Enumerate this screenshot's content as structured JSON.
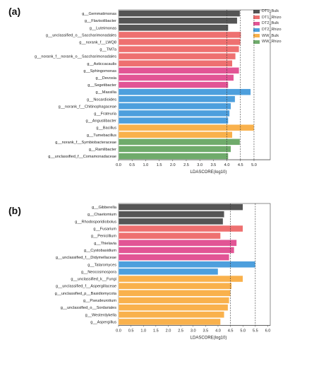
{
  "colors": {
    "DT1_Bulk": "#555555",
    "DT1_Rhizo": "#ee7070",
    "DT2_Bulk": "#e25595",
    "DT2_Rhizo": "#4d9fdd",
    "WW_Bulk": "#f9b14c",
    "WW_Rhizo": "#6fab6b"
  },
  "legend": [
    {
      "key": "DT1_Bulk",
      "label": "DT1_Bulk"
    },
    {
      "key": "DT1_Rhizo",
      "label": "DT1_Rhizo"
    },
    {
      "key": "DT2_Bulk",
      "label": "DT2_Bulk"
    },
    {
      "key": "DT2_Rhizo",
      "label": "DT2_Rhizo"
    },
    {
      "key": "WW_Bulk",
      "label": "WW_Bulk"
    },
    {
      "key": "WW_Rhizo",
      "label": "WW_Rhizo"
    }
  ],
  "chart_data": [
    {
      "panel": "(a)",
      "type": "bar",
      "orientation": "horizontal",
      "xlabel": "LDASCORE(log10)",
      "xlim": [
        0,
        5.6
      ],
      "xticks": [
        "0.0",
        "0.5",
        "1.0",
        "1.5",
        "2.0",
        "2.5",
        "3.0",
        "3.5",
        "4.0",
        "4.5",
        "5.0"
      ],
      "reference_lines": [
        4.0,
        4.5,
        5.0
      ],
      "categories": [
        "g__Gemmatimonas",
        "g__Flavisolibacter",
        "g__Luteimonas",
        "g__unclassified_o__Saccharimonadales",
        "g__norank_f__LWQ8",
        "g__TM7a",
        "g__norank_f__norank_o__Saccharimonadales",
        "g__Asticcacaulis",
        "g__Sphingomonas",
        "g__Devosia",
        "g__Segetibacter",
        "g__Massilia",
        "g__Nocardioides",
        "g__norank_f__Chitinophagaceae",
        "g__Frateuria",
        "g__Angustibacter",
        "g__Bacillus",
        "g__Tumebacillus",
        "g__norank_f__Symbiobacteraceae",
        "g__Ramlibacter",
        "g__unclassified_f__Comamonadaceae"
      ],
      "groups": [
        "DT1_Bulk",
        "DT1_Bulk",
        "DT1_Bulk",
        "DT1_Rhizo",
        "DT1_Rhizo",
        "DT1_Rhizo",
        "DT1_Rhizo",
        "DT1_Rhizo",
        "DT2_Bulk",
        "DT2_Bulk",
        "DT2_Bulk",
        "DT2_Rhizo",
        "DT2_Rhizo",
        "DT2_Rhizo",
        "DT2_Rhizo",
        "DT2_Rhizo",
        "WW_Bulk",
        "WW_Bulk",
        "WW_Rhizo",
        "WW_Rhizo",
        "WW_Rhizo"
      ],
      "values": [
        4.48,
        4.38,
        4.05,
        4.52,
        4.5,
        4.45,
        4.32,
        4.2,
        4.45,
        4.25,
        4.05,
        4.88,
        4.3,
        4.15,
        4.1,
        4.05,
        5.0,
        4.2,
        4.48,
        4.15,
        4.05
      ]
    },
    {
      "panel": "(b)",
      "type": "bar",
      "orientation": "horizontal",
      "xlabel": "LDASCORE(log10)",
      "xlim": [
        0,
        6.1
      ],
      "xticks": [
        "0.0",
        "0.5",
        "1.0",
        "1.5",
        "2.0",
        "2.5",
        "3.0",
        "3.5",
        "4.0",
        "4.5",
        "5.0",
        "5.5",
        "6.0"
      ],
      "reference_lines": [
        4.5,
        5.5
      ],
      "categories": [
        "g__Gibberella",
        "g__Chaetomium",
        "g__Rhodosporidiobolus",
        "g__Fusarium",
        "g__Penicillium",
        "g__Thielavia",
        "g__Cystobasidium",
        "g__unclassified_f__Didymellaceae",
        "g__Talaromyces",
        "g__Neocosmospora",
        "g__unclassified_k__Fungi",
        "g__unclassified_f__Aspergillaceae",
        "g__unclassified_p__Basidiomycota",
        "g__Pseudeurotium",
        "g__unclassified_o__Sordariales",
        "g__Westerdykella",
        "g__Aspergillus"
      ],
      "groups": [
        "DT1_Bulk",
        "DT1_Bulk",
        "DT1_Bulk",
        "DT1_Rhizo",
        "DT1_Rhizo",
        "DT2_Bulk",
        "DT2_Bulk",
        "DT2_Bulk",
        "DT2_Rhizo",
        "DT2_Rhizo",
        "WW_Bulk",
        "WW_Bulk",
        "WW_Bulk",
        "WW_Bulk",
        "WW_Bulk",
        "WW_Bulk",
        "WW_Bulk"
      ],
      "values": [
        5.0,
        4.25,
        4.2,
        5.0,
        4.1,
        4.75,
        4.65,
        4.45,
        5.5,
        4.0,
        5.0,
        4.55,
        4.5,
        4.45,
        4.4,
        4.25,
        4.1
      ]
    }
  ]
}
